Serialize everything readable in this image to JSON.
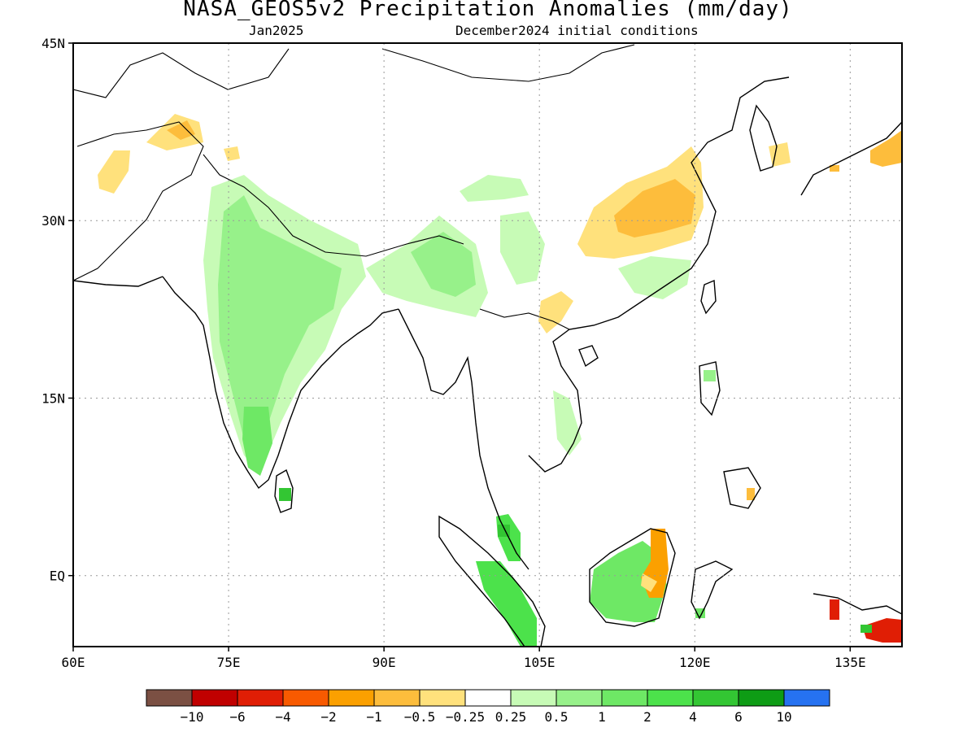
{
  "title": "NASA_GEOS5v2 Precipitation Anomalies (mm/day)",
  "subtitle_left": "Jan2025",
  "subtitle_right": "December2024 initial conditions",
  "map": {
    "projection": "lat-lon",
    "lon_range": [
      60,
      140
    ],
    "lat_range": [
      -6,
      45
    ],
    "lon_ticks": [
      {
        "value": 60,
        "label": "60E"
      },
      {
        "value": 75,
        "label": "75E"
      },
      {
        "value": 90,
        "label": "90E"
      },
      {
        "value": 105,
        "label": "105E"
      },
      {
        "value": 120,
        "label": "120E"
      },
      {
        "value": 135,
        "label": "135E"
      }
    ],
    "lat_ticks": [
      {
        "value": 45,
        "label": "45N"
      },
      {
        "value": 30,
        "label": "30N"
      },
      {
        "value": 15,
        "label": "15N"
      },
      {
        "value": 0,
        "label": "EQ"
      }
    ],
    "gridlines": "dotted"
  },
  "colorbar": {
    "colors": [
      "#7b5043",
      "#c00000",
      "#e01e05",
      "#f85a00",
      "#fba000",
      "#fdbd3c",
      "#ffe17c",
      "#ffffff",
      "#c7fbb6",
      "#97f18a",
      "#6ee865",
      "#4ce24b",
      "#33c633",
      "#0e9c15",
      "#2672f1"
    ],
    "labels": [
      "−10",
      "−6",
      "−4",
      "−2",
      "−1",
      "−0.5",
      "−0.25",
      "0.25",
      "0.5",
      "1",
      "2",
      "4",
      "6",
      "10"
    ]
  },
  "anomaly_regions": [
    {
      "name": "north-india-wet",
      "lon": 79.5,
      "lat": 24,
      "value": 0.5
    },
    {
      "name": "central-india-wet",
      "lon": 78,
      "lat": 19,
      "value": 1
    },
    {
      "name": "south-india-wet",
      "lon": 76.5,
      "lat": 13,
      "value": 1
    },
    {
      "name": "sri-lanka-wet",
      "lon": 80.5,
      "lat": 8,
      "value": 4
    },
    {
      "name": "afghanistan-dry",
      "lon": 64.5,
      "lat": 33.5,
      "value": -0.5
    },
    {
      "name": "kashmir-dry",
      "lon": 73.5,
      "lat": 37,
      "value": -0.5
    },
    {
      "name": "tibet-wet",
      "lon": 97.5,
      "lat": 32,
      "value": 0.5
    },
    {
      "name": "myanmar-wet",
      "lon": 95.5,
      "lat": 27,
      "value": 1
    },
    {
      "name": "yunnan-wet",
      "lon": 106,
      "lat": 28,
      "value": 0.5
    },
    {
      "name": "central-china-dry",
      "lon": 112.5,
      "lat": 30.5,
      "value": -1
    },
    {
      "name": "south-china-wet",
      "lon": 114,
      "lat": 27,
      "value": 0.5
    },
    {
      "name": "vietnam-dry",
      "lon": 104.5,
      "lat": 23.5,
      "value": -0.5
    },
    {
      "name": "sumatra-wet",
      "lon": 101.5,
      "lat": 0.5,
      "value": 2
    },
    {
      "name": "malaysia-wet",
      "lon": 102.5,
      "lat": 5,
      "value": 4
    },
    {
      "name": "borneo-wet",
      "lon": 113,
      "lat": -0.5,
      "value": 2
    },
    {
      "name": "borneo-east-dry",
      "lon": 117,
      "lat": 2,
      "value": -2
    },
    {
      "name": "philippines-dry",
      "lon": 121.5,
      "lat": 9,
      "value": -0.5
    },
    {
      "name": "japan-dry",
      "lon": 137,
      "lat": 35.5,
      "value": -1
    },
    {
      "name": "new-guinea-dry",
      "lon": 138.5,
      "lat": -4.5,
      "value": -6
    },
    {
      "name": "korea-dry",
      "lon": 126.5,
      "lat": 36,
      "value": -0.5
    }
  ]
}
